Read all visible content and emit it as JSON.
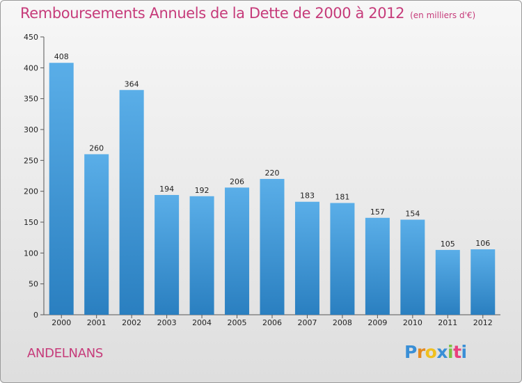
{
  "title": "Remboursements Annuels de la Dette de 2000 à 2012",
  "unit_note": "(en milliers d'€)",
  "place_name": "ANDELNANS",
  "logo": {
    "letters": [
      "P",
      "r",
      "o",
      "x",
      "i",
      "t",
      "i"
    ]
  },
  "colors": {
    "title": "#c63b7a",
    "bar_top": "#5aaee8",
    "bar_bottom": "#2a7fc0",
    "logo_letters": [
      "#3a8fd6",
      "#e48a1f",
      "#f0c020",
      "#3a8fd6",
      "#7dc242",
      "#e8417d",
      "#3a8fd6"
    ]
  },
  "chart_data": {
    "type": "bar",
    "categories": [
      "2000",
      "2001",
      "2002",
      "2003",
      "2004",
      "2005",
      "2006",
      "2007",
      "2008",
      "2009",
      "2010",
      "2011",
      "2012"
    ],
    "values": [
      408,
      260,
      364,
      194,
      192,
      206,
      220,
      183,
      181,
      157,
      154,
      105,
      106
    ],
    "ylim": [
      0,
      450
    ],
    "yticks": [
      0,
      50,
      100,
      150,
      200,
      250,
      300,
      350,
      400,
      450
    ],
    "grid": false,
    "data_labels": true
  }
}
